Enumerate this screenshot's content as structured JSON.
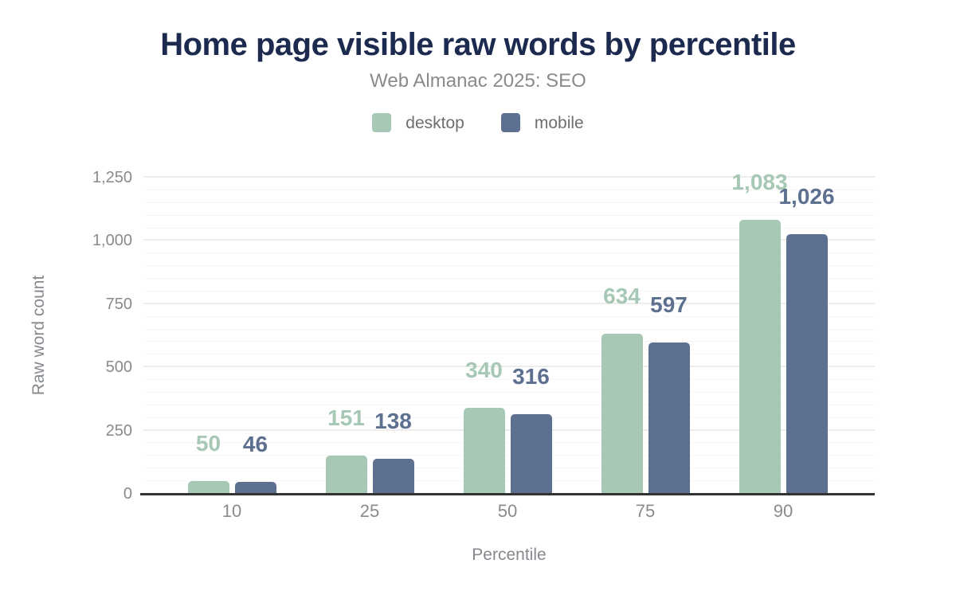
{
  "header": {
    "title": "Home page visible raw words by percentile",
    "subtitle": "Web Almanac 2025: SEO"
  },
  "colors": {
    "title": "#1b2a4e",
    "subtitle": "#8a8a8a",
    "axis_text": "#8a8a8a",
    "desktop": "#a6c8b5",
    "mobile": "#5d7090",
    "grid_major": "#ededed",
    "grid_minor": "#f6f6f6",
    "baseline": "#333333"
  },
  "chart_data": {
    "type": "bar",
    "title": "Home page visible raw words by percentile",
    "subtitle": "Web Almanac 2025: SEO",
    "categories": [
      "10",
      "25",
      "50",
      "75",
      "90"
    ],
    "series": [
      {
        "name": "desktop",
        "color": "#a6c8b5",
        "values": [
          50,
          151,
          340,
          634,
          1083
        ],
        "value_labels": [
          "50",
          "151",
          "340",
          "634",
          "1,083"
        ]
      },
      {
        "name": "mobile",
        "color": "#5d7090",
        "values": [
          46,
          138,
          316,
          597,
          1026
        ],
        "value_labels": [
          "46",
          "138",
          "316",
          "597",
          "1,026"
        ]
      }
    ],
    "xlabel": "Percentile",
    "ylabel": "Raw word count",
    "ylim": [
      0,
      1250
    ],
    "yticks": [
      {
        "value": 0,
        "label": "0"
      },
      {
        "value": 250,
        "label": "250"
      },
      {
        "value": 500,
        "label": "500"
      },
      {
        "value": 750,
        "label": "750"
      },
      {
        "value": 1000,
        "label": "1,000"
      },
      {
        "value": 1250,
        "label": "1,250"
      }
    ],
    "minor_grid_step": 50,
    "major_grid_step": 250,
    "grid": true,
    "legend_position": "top"
  }
}
